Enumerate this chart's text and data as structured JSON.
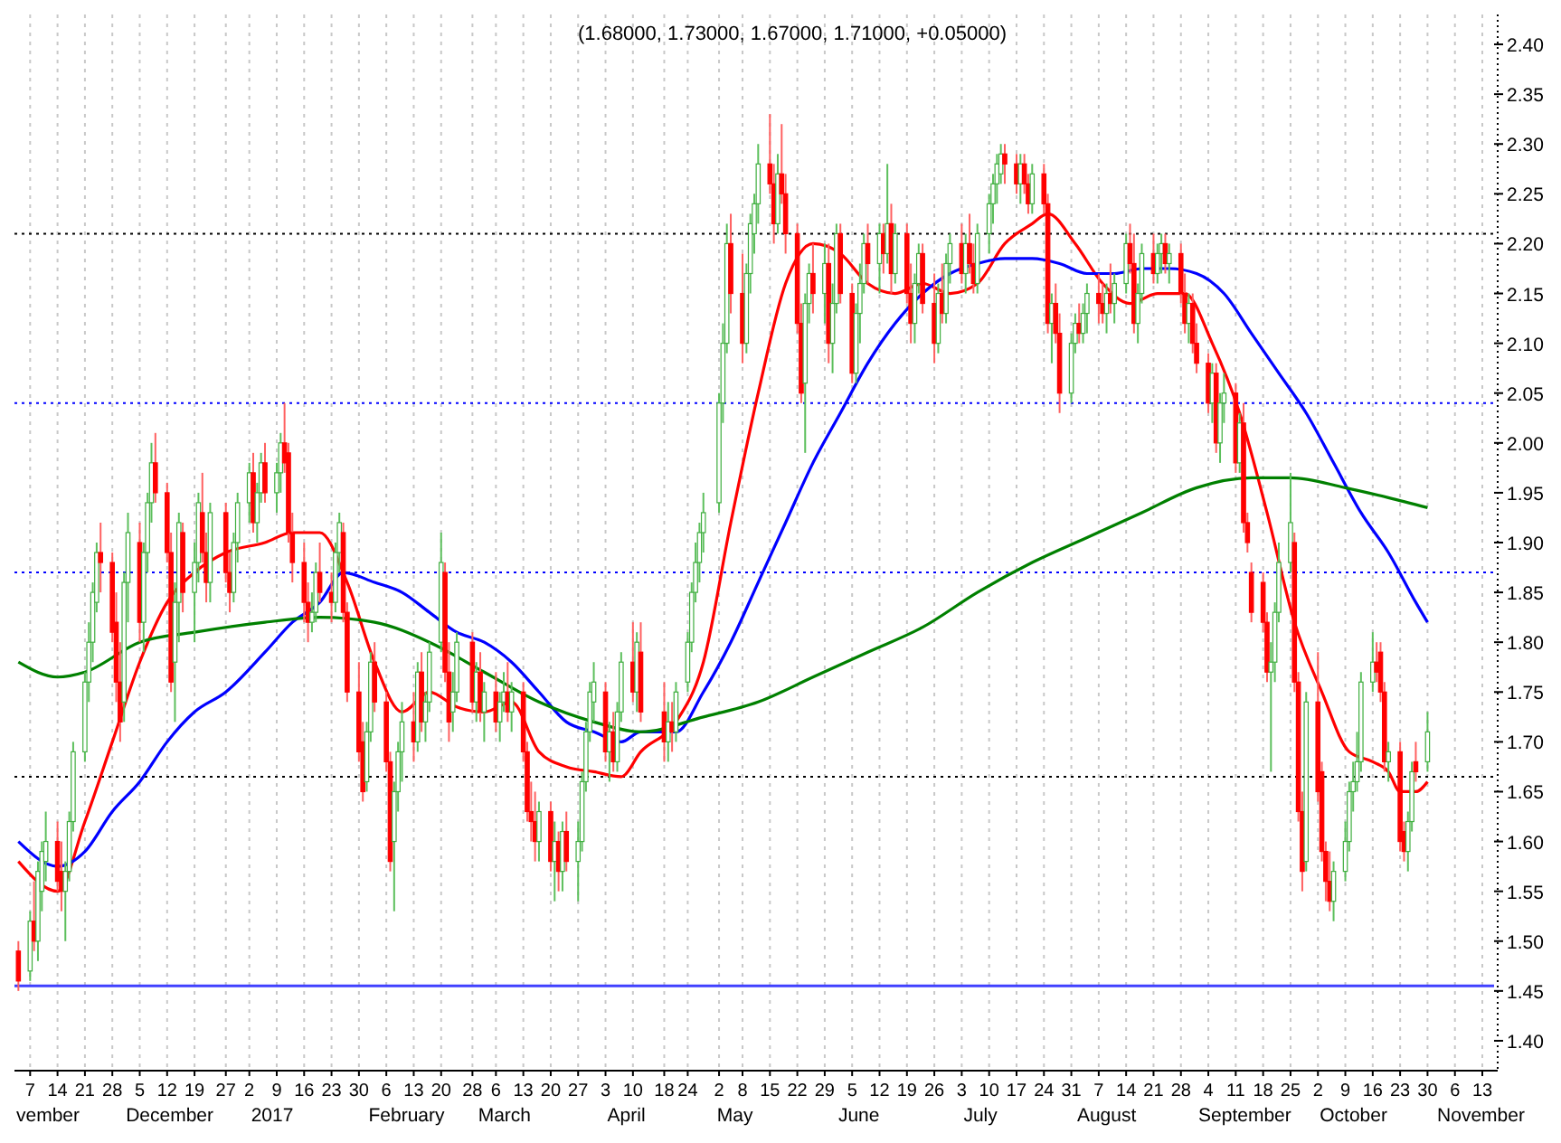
{
  "chart_data": {
    "type": "candlestick",
    "title": "(1.68000, 1.73000, 1.67000, 1.71000, +0.05000)",
    "x": [
      "2016-11-04",
      "2016-11-07",
      "2016-11-08",
      "2016-11-09",
      "2016-11-10",
      "2016-11-11",
      "2016-11-14",
      "2016-11-15",
      "2016-11-16",
      "2016-11-17",
      "2016-11-18",
      "2016-11-21",
      "2016-11-22",
      "2016-11-23",
      "2016-11-24",
      "2016-11-25",
      "2016-11-28",
      "2016-11-29",
      "2016-11-30",
      "2016-12-01",
      "2016-12-02",
      "2016-12-05",
      "2016-12-06",
      "2016-12-07",
      "2016-12-08",
      "2016-12-09",
      "2016-12-12",
      "2016-12-13",
      "2016-12-14",
      "2016-12-15",
      "2016-12-16",
      "2016-12-19",
      "2016-12-20",
      "2016-12-21",
      "2016-12-22",
      "2016-12-23",
      "2016-12-27",
      "2016-12-28",
      "2016-12-29",
      "2016-12-30",
      "2017-01-02",
      "2017-01-03",
      "2017-01-04",
      "2017-01-05",
      "2017-01-06",
      "2017-01-09",
      "2017-01-10",
      "2017-01-11",
      "2017-01-12",
      "2017-01-13",
      "2017-01-16",
      "2017-01-17",
      "2017-01-18",
      "2017-01-19",
      "2017-01-20",
      "2017-01-23",
      "2017-01-24",
      "2017-01-25",
      "2017-01-26",
      "2017-01-27",
      "2017-01-30",
      "2017-01-31",
      "2017-02-01",
      "2017-02-02",
      "2017-02-03",
      "2017-02-06",
      "2017-02-07",
      "2017-02-08",
      "2017-02-09",
      "2017-02-10",
      "2017-02-13",
      "2017-02-14",
      "2017-02-15",
      "2017-02-16",
      "2017-02-17",
      "2017-02-20",
      "2017-02-21",
      "2017-02-22",
      "2017-02-23",
      "2017-02-24",
      "2017-02-28",
      "2017-03-01",
      "2017-03-02",
      "2017-03-03",
      "2017-03-06",
      "2017-03-07",
      "2017-03-08",
      "2017-03-09",
      "2017-03-10",
      "2017-03-13",
      "2017-03-14",
      "2017-03-15",
      "2017-03-16",
      "2017-03-17",
      "2017-03-20",
      "2017-03-21",
      "2017-03-22",
      "2017-03-23",
      "2017-03-24",
      "2017-03-27",
      "2017-03-28",
      "2017-03-29",
      "2017-03-30",
      "2017-03-31",
      "2017-04-03",
      "2017-04-04",
      "2017-04-05",
      "2017-04-06",
      "2017-04-07",
      "2017-04-10",
      "2017-04-11",
      "2017-04-12",
      "2017-04-18",
      "2017-04-19",
      "2017-04-20",
      "2017-04-21",
      "2017-04-24",
      "2017-04-25",
      "2017-04-26",
      "2017-04-27",
      "2017-04-28",
      "2017-05-02",
      "2017-05-03",
      "2017-05-04",
      "2017-05-05",
      "2017-05-08",
      "2017-05-09",
      "2017-05-10",
      "2017-05-11",
      "2017-05-12",
      "2017-05-15",
      "2017-05-16",
      "2017-05-17",
      "2017-05-18",
      "2017-05-19",
      "2017-05-22",
      "2017-05-23",
      "2017-05-24",
      "2017-05-25",
      "2017-05-26",
      "2017-05-29",
      "2017-05-30",
      "2017-05-31",
      "2017-06-01",
      "2017-06-02",
      "2017-06-05",
      "2017-06-06",
      "2017-06-07",
      "2017-06-08",
      "2017-06-09",
      "2017-06-12",
      "2017-06-13",
      "2017-06-14",
      "2017-06-15",
      "2017-06-16",
      "2017-06-19",
      "2017-06-20",
      "2017-06-21",
      "2017-06-22",
      "2017-06-23",
      "2017-06-26",
      "2017-06-27",
      "2017-06-28",
      "2017-06-29",
      "2017-06-30",
      "2017-07-03",
      "2017-07-04",
      "2017-07-05",
      "2017-07-06",
      "2017-07-07",
      "2017-07-10",
      "2017-07-11",
      "2017-07-12",
      "2017-07-13",
      "2017-07-14",
      "2017-07-17",
      "2017-07-18",
      "2017-07-19",
      "2017-07-20",
      "2017-07-21",
      "2017-07-24",
      "2017-07-25",
      "2017-07-26",
      "2017-07-27",
      "2017-07-28",
      "2017-07-31",
      "2017-08-01",
      "2017-08-02",
      "2017-08-03",
      "2017-08-04",
      "2017-08-07",
      "2017-08-08",
      "2017-08-09",
      "2017-08-10",
      "2017-08-11",
      "2017-08-14",
      "2017-08-15",
      "2017-08-16",
      "2017-08-17",
      "2017-08-18",
      "2017-08-21",
      "2017-08-22",
      "2017-08-23",
      "2017-08-24",
      "2017-08-25",
      "2017-08-28",
      "2017-08-29",
      "2017-08-30",
      "2017-08-31",
      "2017-09-01",
      "2017-09-04",
      "2017-09-05",
      "2017-09-06",
      "2017-09-07",
      "2017-09-08",
      "2017-09-11",
      "2017-09-12",
      "2017-09-13",
      "2017-09-14",
      "2017-09-15",
      "2017-09-18",
      "2017-09-19",
      "2017-09-20",
      "2017-09-21",
      "2017-09-22",
      "2017-09-25",
      "2017-09-26",
      "2017-09-27",
      "2017-09-28",
      "2017-09-29",
      "2017-10-02",
      "2017-10-03",
      "2017-10-04",
      "2017-10-05",
      "2017-10-06",
      "2017-10-09",
      "2017-10-10",
      "2017-10-11",
      "2017-10-12",
      "2017-10-13",
      "2017-10-16",
      "2017-10-17",
      "2017-10-18",
      "2017-10-19",
      "2017-10-20",
      "2017-10-23",
      "2017-10-24",
      "2017-10-25",
      "2017-10-26",
      "2017-10-27",
      "2017-10-30"
    ],
    "ohlc": [
      [
        1.49,
        1.5,
        1.45,
        1.46
      ],
      [
        1.47,
        1.53,
        1.46,
        1.52
      ],
      [
        1.52,
        1.56,
        1.49,
        1.5
      ],
      [
        1.5,
        1.58,
        1.48,
        1.57
      ],
      [
        1.55,
        1.6,
        1.53,
        1.59
      ],
      [
        1.58,
        1.63,
        1.56,
        1.6
      ],
      [
        1.6,
        1.62,
        1.55,
        1.56
      ],
      [
        1.57,
        1.6,
        1.53,
        1.55
      ],
      [
        1.55,
        1.58,
        1.5,
        1.57
      ],
      [
        1.57,
        1.63,
        1.56,
        1.62
      ],
      [
        1.62,
        1.7,
        1.61,
        1.69
      ],
      [
        1.69,
        1.77,
        1.68,
        1.76
      ],
      [
        1.76,
        1.82,
        1.74,
        1.8
      ],
      [
        1.8,
        1.86,
        1.78,
        1.85
      ],
      [
        1.84,
        1.9,
        1.83,
        1.89
      ],
      [
        1.89,
        1.92,
        1.85,
        1.88
      ],
      [
        1.88,
        1.89,
        1.8,
        1.81
      ],
      [
        1.82,
        1.85,
        1.74,
        1.76
      ],
      [
        1.76,
        1.8,
        1.7,
        1.72
      ],
      [
        1.74,
        1.87,
        1.72,
        1.86
      ],
      [
        1.86,
        1.93,
        1.82,
        1.91
      ],
      [
        1.9,
        1.92,
        1.8,
        1.82
      ],
      [
        1.82,
        1.9,
        1.79,
        1.89
      ],
      [
        1.89,
        1.95,
        1.87,
        1.94
      ],
      [
        1.94,
        2.0,
        1.92,
        1.98
      ],
      [
        1.98,
        2.01,
        1.94,
        1.95
      ],
      [
        1.95,
        1.96,
        1.88,
        1.89
      ],
      [
        1.89,
        1.91,
        1.75,
        1.76
      ],
      [
        1.78,
        1.86,
        1.72,
        1.84
      ],
      [
        1.84,
        1.93,
        1.8,
        1.92
      ],
      [
        1.91,
        1.92,
        1.83,
        1.85
      ],
      [
        1.85,
        1.9,
        1.8,
        1.88
      ],
      [
        1.88,
        1.95,
        1.86,
        1.94
      ],
      [
        1.93,
        1.97,
        1.88,
        1.89
      ],
      [
        1.89,
        1.91,
        1.84,
        1.86
      ],
      [
        1.86,
        1.94,
        1.84,
        1.93
      ],
      [
        1.93,
        1.94,
        1.86,
        1.87
      ],
      [
        1.87,
        1.89,
        1.83,
        1.85
      ],
      [
        1.85,
        1.91,
        1.84,
        1.9
      ],
      [
        1.9,
        1.95,
        1.88,
        1.94
      ],
      [
        1.94,
        1.98,
        1.92,
        1.97
      ],
      [
        1.97,
        1.99,
        1.91,
        1.92
      ],
      [
        1.92,
        1.96,
        1.9,
        1.95
      ],
      [
        1.95,
        1.99,
        1.94,
        1.98
      ],
      [
        1.98,
        2.0,
        1.94,
        1.95
      ],
      [
        1.95,
        1.98,
        1.93,
        1.97
      ],
      [
        1.97,
        2.01,
        1.95,
        2.0
      ],
      [
        2.0,
        2.04,
        1.97,
        1.98
      ],
      [
        1.99,
        2.0,
        1.9,
        1.91
      ],
      [
        1.91,
        1.93,
        1.86,
        1.88
      ],
      [
        1.88,
        1.9,
        1.82,
        1.84
      ],
      [
        1.84,
        1.86,
        1.8,
        1.82
      ],
      [
        1.82,
        1.85,
        1.81,
        1.83
      ],
      [
        1.83,
        1.88,
        1.82,
        1.87
      ],
      [
        1.87,
        1.9,
        1.84,
        1.85
      ],
      [
        1.85,
        1.87,
        1.82,
        1.84
      ],
      [
        1.84,
        1.9,
        1.83,
        1.89
      ],
      [
        1.89,
        1.93,
        1.87,
        1.92
      ],
      [
        1.91,
        1.92,
        1.82,
        1.83
      ],
      [
        1.83,
        1.84,
        1.74,
        1.75
      ],
      [
        1.75,
        1.78,
        1.68,
        1.69
      ],
      [
        1.7,
        1.72,
        1.64,
        1.65
      ],
      [
        1.66,
        1.72,
        1.65,
        1.71
      ],
      [
        1.71,
        1.79,
        1.7,
        1.78
      ],
      [
        1.78,
        1.8,
        1.73,
        1.74
      ],
      [
        1.74,
        1.75,
        1.67,
        1.68
      ],
      [
        1.68,
        1.69,
        1.57,
        1.58
      ],
      [
        1.6,
        1.66,
        1.53,
        1.65
      ],
      [
        1.65,
        1.7,
        1.63,
        1.69
      ],
      [
        1.69,
        1.74,
        1.66,
        1.72
      ],
      [
        1.72,
        1.75,
        1.68,
        1.7
      ],
      [
        1.7,
        1.78,
        1.69,
        1.77
      ],
      [
        1.77,
        1.79,
        1.71,
        1.72
      ],
      [
        1.72,
        1.75,
        1.7,
        1.74
      ],
      [
        1.74,
        1.8,
        1.73,
        1.79
      ],
      [
        1.8,
        1.91,
        1.79,
        1.88
      ],
      [
        1.87,
        1.88,
        1.76,
        1.77
      ],
      [
        1.77,
        1.8,
        1.7,
        1.72
      ],
      [
        1.73,
        1.77,
        1.71,
        1.75
      ],
      [
        1.75,
        1.81,
        1.74,
        1.8
      ],
      [
        1.8,
        1.81,
        1.73,
        1.74
      ],
      [
        1.74,
        1.78,
        1.72,
        1.77
      ],
      [
        1.77,
        1.79,
        1.72,
        1.73
      ],
      [
        1.73,
        1.76,
        1.7,
        1.75
      ],
      [
        1.75,
        1.77,
        1.71,
        1.72
      ],
      [
        1.72,
        1.75,
        1.7,
        1.74
      ],
      [
        1.74,
        1.77,
        1.73,
        1.75
      ],
      [
        1.75,
        1.78,
        1.72,
        1.73
      ],
      [
        1.73,
        1.76,
        1.71,
        1.75
      ],
      [
        1.75,
        1.76,
        1.68,
        1.69
      ],
      [
        1.69,
        1.7,
        1.62,
        1.63
      ],
      [
        1.63,
        1.66,
        1.6,
        1.62
      ],
      [
        1.62,
        1.65,
        1.58,
        1.6
      ],
      [
        1.6,
        1.64,
        1.58,
        1.63
      ],
      [
        1.63,
        1.64,
        1.57,
        1.58
      ],
      [
        1.58,
        1.62,
        1.54,
        1.6
      ],
      [
        1.6,
        1.61,
        1.55,
        1.57
      ],
      [
        1.57,
        1.62,
        1.55,
        1.61
      ],
      [
        1.61,
        1.63,
        1.57,
        1.58
      ],
      [
        1.58,
        1.62,
        1.54,
        1.6
      ],
      [
        1.6,
        1.67,
        1.59,
        1.66
      ],
      [
        1.66,
        1.72,
        1.65,
        1.71
      ],
      [
        1.71,
        1.76,
        1.7,
        1.75
      ],
      [
        1.74,
        1.78,
        1.72,
        1.76
      ],
      [
        1.75,
        1.76,
        1.68,
        1.69
      ],
      [
        1.69,
        1.72,
        1.66,
        1.71
      ],
      [
        1.71,
        1.73,
        1.67,
        1.68
      ],
      [
        1.68,
        1.74,
        1.67,
        1.73
      ],
      [
        1.73,
        1.79,
        1.72,
        1.78
      ],
      [
        1.78,
        1.82,
        1.74,
        1.75
      ],
      [
        1.75,
        1.81,
        1.73,
        1.8
      ],
      [
        1.79,
        1.82,
        1.72,
        1.73
      ],
      [
        1.73,
        1.76,
        1.68,
        1.7
      ],
      [
        1.7,
        1.74,
        1.68,
        1.72
      ],
      [
        1.72,
        1.74,
        1.69,
        1.71
      ],
      [
        1.71,
        1.76,
        1.7,
        1.75
      ],
      [
        1.76,
        1.81,
        1.75,
        1.8
      ],
      [
        1.8,
        1.86,
        1.79,
        1.85
      ],
      [
        1.85,
        1.9,
        1.84,
        1.88
      ],
      [
        1.88,
        1.92,
        1.86,
        1.91
      ],
      [
        1.91,
        1.95,
        1.89,
        1.93
      ],
      [
        1.94,
        2.05,
        1.93,
        2.04
      ],
      [
        2.04,
        2.12,
        2.02,
        2.1
      ],
      [
        2.1,
        2.22,
        2.09,
        2.2
      ],
      [
        2.2,
        2.23,
        2.13,
        2.15
      ],
      [
        2.15,
        2.19,
        2.08,
        2.1
      ],
      [
        2.1,
        2.18,
        2.09,
        2.17
      ],
      [
        2.17,
        2.23,
        2.15,
        2.22
      ],
      [
        2.21,
        2.25,
        2.19,
        2.24
      ],
      [
        2.24,
        2.3,
        2.22,
        2.28
      ],
      [
        2.28,
        2.33,
        2.25,
        2.26
      ],
      [
        2.26,
        2.28,
        2.2,
        2.22
      ],
      [
        2.22,
        2.29,
        2.21,
        2.27
      ],
      [
        2.27,
        2.32,
        2.24,
        2.25
      ],
      [
        2.25,
        2.27,
        2.19,
        2.21
      ],
      [
        2.21,
        2.22,
        2.11,
        2.12
      ],
      [
        2.12,
        2.14,
        2.04,
        2.05
      ],
      [
        2.06,
        2.15,
        1.99,
        2.14
      ],
      [
        2.14,
        2.18,
        2.12,
        2.17
      ],
      [
        2.17,
        2.2,
        2.13,
        2.15
      ],
      [
        2.15,
        2.2,
        2.12,
        2.18
      ],
      [
        2.18,
        2.2,
        2.08,
        2.1
      ],
      [
        2.1,
        2.16,
        2.07,
        2.14
      ],
      [
        2.14,
        2.22,
        2.13,
        2.21
      ],
      [
        2.21,
        2.22,
        2.14,
        2.15
      ],
      [
        2.15,
        2.16,
        2.06,
        2.07
      ],
      [
        2.07,
        2.14,
        2.06,
        2.13
      ],
      [
        2.13,
        2.18,
        2.1,
        2.16
      ],
      [
        2.16,
        2.21,
        2.15,
        2.2
      ],
      [
        2.2,
        2.22,
        2.16,
        2.18
      ],
      [
        2.18,
        2.22,
        2.15,
        2.21
      ],
      [
        2.21,
        2.22,
        2.17,
        2.19
      ],
      [
        2.19,
        2.28,
        2.18,
        2.22
      ],
      [
        2.22,
        2.24,
        2.15,
        2.17
      ],
      [
        2.17,
        2.22,
        2.16,
        2.21
      ],
      [
        2.21,
        2.22,
        2.14,
        2.15
      ],
      [
        2.15,
        2.18,
        2.1,
        2.12
      ],
      [
        2.12,
        2.17,
        2.1,
        2.16
      ],
      [
        2.16,
        2.2,
        2.15,
        2.19
      ],
      [
        2.19,
        2.2,
        2.13,
        2.14
      ],
      [
        2.14,
        2.17,
        2.08,
        2.1
      ],
      [
        2.1,
        2.16,
        2.09,
        2.15
      ],
      [
        2.15,
        2.18,
        2.12,
        2.13
      ],
      [
        2.13,
        2.19,
        2.12,
        2.18
      ],
      [
        2.18,
        2.21,
        2.16,
        2.2
      ],
      [
        2.2,
        2.22,
        2.16,
        2.17
      ],
      [
        2.17,
        2.21,
        2.15,
        2.2
      ],
      [
        2.2,
        2.23,
        2.17,
        2.18
      ],
      [
        2.18,
        2.2,
        2.15,
        2.16
      ],
      [
        2.16,
        2.22,
        2.15,
        2.21
      ],
      [
        2.21,
        2.25,
        2.19,
        2.24
      ],
      [
        2.24,
        2.27,
        2.22,
        2.26
      ],
      [
        2.26,
        2.29,
        2.24,
        2.28
      ],
      [
        2.27,
        2.3,
        2.26,
        2.29
      ],
      [
        2.29,
        2.3,
        2.26,
        2.28
      ],
      [
        2.28,
        2.29,
        2.25,
        2.26
      ],
      [
        2.26,
        2.29,
        2.24,
        2.28
      ],
      [
        2.28,
        2.29,
        2.25,
        2.26
      ],
      [
        2.26,
        2.27,
        2.23,
        2.24
      ],
      [
        2.24,
        2.28,
        2.23,
        2.27
      ],
      [
        2.27,
        2.28,
        2.23,
        2.24
      ],
      [
        2.24,
        2.25,
        2.11,
        2.12
      ],
      [
        2.12,
        2.15,
        2.08,
        2.14
      ],
      [
        2.14,
        2.16,
        2.1,
        2.11
      ],
      [
        2.11,
        2.13,
        2.03,
        2.05
      ],
      [
        2.05,
        2.11,
        2.04,
        2.1
      ],
      [
        2.1,
        2.13,
        2.09,
        2.12
      ],
      [
        2.12,
        2.14,
        2.1,
        2.11
      ],
      [
        2.11,
        2.14,
        2.1,
        2.13
      ],
      [
        2.13,
        2.16,
        2.11,
        2.15
      ],
      [
        2.15,
        2.17,
        2.12,
        2.14
      ],
      [
        2.14,
        2.16,
        2.12,
        2.13
      ],
      [
        2.13,
        2.16,
        2.11,
        2.15
      ],
      [
        2.15,
        2.18,
        2.13,
        2.14
      ],
      [
        2.14,
        2.17,
        2.12,
        2.16
      ],
      [
        2.16,
        2.21,
        2.15,
        2.2
      ],
      [
        2.2,
        2.22,
        2.17,
        2.18
      ],
      [
        2.18,
        2.21,
        2.11,
        2.12
      ],
      [
        2.12,
        2.16,
        2.1,
        2.15
      ],
      [
        2.15,
        2.2,
        2.14,
        2.19
      ],
      [
        2.19,
        2.21,
        2.16,
        2.17
      ],
      [
        2.17,
        2.2,
        2.16,
        2.19
      ],
      [
        2.19,
        2.21,
        2.17,
        2.2
      ],
      [
        2.2,
        2.21,
        2.17,
        2.18
      ],
      [
        2.18,
        2.2,
        2.16,
        2.19
      ],
      [
        2.19,
        2.2,
        2.14,
        2.15
      ],
      [
        2.15,
        2.17,
        2.11,
        2.12
      ],
      [
        2.12,
        2.15,
        2.1,
        2.14
      ],
      [
        2.14,
        2.15,
        2.09,
        2.1
      ],
      [
        2.1,
        2.12,
        2.07,
        2.08
      ],
      [
        2.08,
        2.09,
        2.03,
        2.04
      ],
      [
        2.04,
        2.08,
        2.02,
        2.07
      ],
      [
        2.07,
        2.08,
        1.99,
        2.0
      ],
      [
        2.0,
        2.05,
        1.98,
        2.04
      ],
      [
        2.04,
        2.07,
        2.02,
        2.05
      ],
      [
        2.05,
        2.06,
        1.97,
        1.98
      ],
      [
        1.98,
        2.03,
        1.97,
        2.02
      ],
      [
        2.02,
        2.04,
        1.91,
        1.92
      ],
      [
        1.92,
        1.93,
        1.89,
        1.9
      ],
      [
        1.87,
        1.88,
        1.82,
        1.83
      ],
      [
        1.86,
        1.87,
        1.81,
        1.82
      ],
      [
        1.82,
        1.83,
        1.76,
        1.77
      ],
      [
        1.77,
        1.8,
        1.67,
        1.78
      ],
      [
        1.78,
        1.84,
        1.76,
        1.83
      ],
      [
        1.83,
        1.9,
        1.82,
        1.88
      ],
      [
        1.88,
        1.97,
        1.87,
        1.92
      ],
      [
        1.9,
        1.91,
        1.75,
        1.76
      ],
      [
        1.76,
        1.77,
        1.62,
        1.63
      ],
      [
        1.63,
        1.65,
        1.55,
        1.57
      ],
      [
        1.58,
        1.75,
        1.57,
        1.74
      ],
      [
        1.74,
        1.79,
        1.64,
        1.65
      ],
      [
        1.67,
        1.68,
        1.58,
        1.59
      ],
      [
        1.59,
        1.6,
        1.54,
        1.56
      ],
      [
        1.56,
        1.59,
        1.53,
        1.54
      ],
      [
        1.54,
        1.58,
        1.52,
        1.57
      ],
      [
        1.57,
        1.62,
        1.56,
        1.6
      ],
      [
        1.6,
        1.66,
        1.59,
        1.65
      ],
      [
        1.65,
        1.68,
        1.63,
        1.66
      ],
      [
        1.66,
        1.71,
        1.65,
        1.68
      ],
      [
        1.68,
        1.77,
        1.67,
        1.76
      ],
      [
        1.76,
        1.81,
        1.75,
        1.78
      ],
      [
        1.78,
        1.8,
        1.76,
        1.77
      ],
      [
        1.79,
        1.8,
        1.74,
        1.75
      ],
      [
        1.75,
        1.76,
        1.67,
        1.68
      ],
      [
        1.68,
        1.7,
        1.66,
        1.69
      ],
      [
        1.69,
        1.7,
        1.59,
        1.6
      ],
      [
        1.61,
        1.62,
        1.58,
        1.59
      ],
      [
        1.59,
        1.63,
        1.57,
        1.62
      ],
      [
        1.62,
        1.68,
        1.61,
        1.67
      ],
      [
        1.68,
        1.7,
        1.66,
        1.67
      ],
      [
        1.68,
        1.73,
        1.67,
        1.71
      ]
    ],
    "series": [
      {
        "type": "line",
        "color": "#ff0000",
        "x": [
          "2016-11-04",
          "2016-11-14",
          "2016-11-21",
          "2016-11-28",
          "2016-12-05",
          "2016-12-12",
          "2016-12-19",
          "2016-12-27",
          "2017-01-06",
          "2017-01-13",
          "2017-01-20",
          "2017-01-27",
          "2017-02-03",
          "2017-02-10",
          "2017-02-17",
          "2017-02-24",
          "2017-03-03",
          "2017-03-10",
          "2017-03-17",
          "2017-03-24",
          "2017-03-31",
          "2017-04-07",
          "2017-04-12",
          "2017-04-21",
          "2017-04-28",
          "2017-05-05",
          "2017-05-12",
          "2017-05-19",
          "2017-05-26",
          "2017-06-02",
          "2017-06-09",
          "2017-06-16",
          "2017-06-23",
          "2017-06-30",
          "2017-07-07",
          "2017-07-14",
          "2017-07-21",
          "2017-07-25",
          "2017-08-01",
          "2017-08-08",
          "2017-08-15",
          "2017-08-22",
          "2017-08-29",
          "2017-09-05",
          "2017-09-12",
          "2017-09-19",
          "2017-09-26",
          "2017-10-03",
          "2017-10-10",
          "2017-10-16",
          "2017-10-20",
          "2017-10-23",
          "2017-10-27",
          "2017-10-30"
        ],
        "values": [
          1.58,
          1.55,
          1.62,
          1.7,
          1.78,
          1.84,
          1.87,
          1.89,
          1.9,
          1.91,
          1.91,
          1.86,
          1.78,
          1.73,
          1.75,
          1.735,
          1.73,
          1.74,
          1.69,
          1.675,
          1.67,
          1.665,
          1.69,
          1.72,
          1.78,
          1.92,
          2.05,
          2.16,
          2.2,
          2.19,
          2.16,
          2.15,
          2.16,
          2.15,
          2.16,
          2.2,
          2.22,
          2.23,
          2.2,
          2.16,
          2.14,
          2.15,
          2.15,
          2.1,
          2.03,
          1.93,
          1.82,
          1.75,
          1.69,
          1.68,
          1.67,
          1.65,
          1.65,
          1.66
        ]
      },
      {
        "type": "line",
        "color": "#0000ff",
        "x": [
          "2016-11-04",
          "2016-11-14",
          "2016-11-21",
          "2016-11-28",
          "2016-12-05",
          "2016-12-12",
          "2016-12-19",
          "2016-12-27",
          "2017-01-06",
          "2017-01-13",
          "2017-01-20",
          "2017-01-26",
          "2017-02-03",
          "2017-02-10",
          "2017-02-17",
          "2017-02-24",
          "2017-03-03",
          "2017-03-10",
          "2017-03-17",
          "2017-03-24",
          "2017-03-31",
          "2017-04-07",
          "2017-04-12",
          "2017-04-21",
          "2017-04-28",
          "2017-05-05",
          "2017-05-12",
          "2017-05-19",
          "2017-05-26",
          "2017-06-02",
          "2017-06-09",
          "2017-06-16",
          "2017-06-23",
          "2017-06-30",
          "2017-07-07",
          "2017-07-14",
          "2017-07-21",
          "2017-07-28",
          "2017-08-04",
          "2017-08-11",
          "2017-08-18",
          "2017-08-25",
          "2017-09-01",
          "2017-09-08",
          "2017-09-15",
          "2017-09-22",
          "2017-09-29",
          "2017-10-06",
          "2017-10-13",
          "2017-10-20",
          "2017-10-27",
          "2017-10-30"
        ],
        "values": [
          1.6,
          1.575,
          1.59,
          1.63,
          1.66,
          1.7,
          1.73,
          1.75,
          1.79,
          1.82,
          1.84,
          1.87,
          1.86,
          1.85,
          1.83,
          1.81,
          1.8,
          1.78,
          1.75,
          1.72,
          1.71,
          1.7,
          1.71,
          1.71,
          1.75,
          1.8,
          1.86,
          1.92,
          1.98,
          2.03,
          2.08,
          2.12,
          2.15,
          2.17,
          2.18,
          2.185,
          2.185,
          2.18,
          2.17,
          2.17,
          2.175,
          2.175,
          2.17,
          2.15,
          2.11,
          2.07,
          2.03,
          1.98,
          1.93,
          1.89,
          1.84,
          1.82
        ]
      },
      {
        "type": "line",
        "color": "#008000",
        "x": [
          "2016-11-04",
          "2016-11-14",
          "2016-11-21",
          "2016-12-05",
          "2016-12-19",
          "2017-01-06",
          "2017-01-20",
          "2017-02-03",
          "2017-02-17",
          "2017-03-03",
          "2017-03-17",
          "2017-03-31",
          "2017-04-12",
          "2017-04-28",
          "2017-05-12",
          "2017-05-26",
          "2017-06-09",
          "2017-06-23",
          "2017-07-07",
          "2017-07-21",
          "2017-08-04",
          "2017-08-18",
          "2017-09-01",
          "2017-09-15",
          "2017-09-25",
          "2017-10-09",
          "2017-10-20",
          "2017-10-30"
        ],
        "values": [
          1.78,
          1.765,
          1.77,
          1.8,
          1.81,
          1.82,
          1.825,
          1.82,
          1.8,
          1.77,
          1.74,
          1.72,
          1.71,
          1.725,
          1.74,
          1.765,
          1.79,
          1.815,
          1.85,
          1.88,
          1.905,
          1.93,
          1.955,
          1.965,
          1.965,
          1.955,
          1.945,
          1.935
        ]
      }
    ],
    "xlim": [
      "2016-11-03",
      "2017-11-16"
    ],
    "xticks": [
      {
        "value": "2016-11-07",
        "label": "7"
      },
      {
        "value": "2016-11-14",
        "label": "14"
      },
      {
        "value": "2016-11-21",
        "label": "21"
      },
      {
        "value": "2016-11-28",
        "label": "28"
      },
      {
        "value": "2016-12-05",
        "label": "5"
      },
      {
        "value": "2016-12-12",
        "label": "12"
      },
      {
        "value": "2016-12-19",
        "label": "19"
      },
      {
        "value": "2016-12-27",
        "label": "27"
      },
      {
        "value": "2017-01-02",
        "label": "2"
      },
      {
        "value": "2017-01-09",
        "label": "9"
      },
      {
        "value": "2017-01-16",
        "label": "16"
      },
      {
        "value": "2017-01-23",
        "label": "23"
      },
      {
        "value": "2017-01-30",
        "label": "30"
      },
      {
        "value": "2017-02-06",
        "label": "6"
      },
      {
        "value": "2017-02-13",
        "label": "13"
      },
      {
        "value": "2017-02-20",
        "label": "20"
      },
      {
        "value": "2017-02-28",
        "label": "28"
      },
      {
        "value": "2017-03-06",
        "label": "6"
      },
      {
        "value": "2017-03-13",
        "label": "13"
      },
      {
        "value": "2017-03-20",
        "label": "20"
      },
      {
        "value": "2017-03-27",
        "label": "27"
      },
      {
        "value": "2017-04-03",
        "label": "3"
      },
      {
        "value": "2017-04-10",
        "label": "10"
      },
      {
        "value": "2017-04-18",
        "label": "18"
      },
      {
        "value": "2017-04-24",
        "label": "24"
      },
      {
        "value": "2017-05-02",
        "label": "2"
      },
      {
        "value": "2017-05-08",
        "label": "8"
      },
      {
        "value": "2017-05-15",
        "label": "15"
      },
      {
        "value": "2017-05-22",
        "label": "22"
      },
      {
        "value": "2017-05-29",
        "label": "29"
      },
      {
        "value": "2017-06-05",
        "label": "5"
      },
      {
        "value": "2017-06-12",
        "label": "12"
      },
      {
        "value": "2017-06-19",
        "label": "19"
      },
      {
        "value": "2017-06-26",
        "label": "26"
      },
      {
        "value": "2017-07-03",
        "label": "3"
      },
      {
        "value": "2017-07-10",
        "label": "10"
      },
      {
        "value": "2017-07-17",
        "label": "17"
      },
      {
        "value": "2017-07-24",
        "label": "24"
      },
      {
        "value": "2017-07-31",
        "label": "31"
      },
      {
        "value": "2017-08-07",
        "label": "7"
      },
      {
        "value": "2017-08-14",
        "label": "14"
      },
      {
        "value": "2017-08-21",
        "label": "21"
      },
      {
        "value": "2017-08-28",
        "label": "28"
      },
      {
        "value": "2017-09-04",
        "label": "4"
      },
      {
        "value": "2017-09-11",
        "label": "11"
      },
      {
        "value": "2017-09-18",
        "label": "18"
      },
      {
        "value": "2017-09-25",
        "label": "25"
      },
      {
        "value": "2017-10-02",
        "label": "2"
      },
      {
        "value": "2017-10-09",
        "label": "9"
      },
      {
        "value": "2017-10-16",
        "label": "16"
      },
      {
        "value": "2017-10-23",
        "label": "23"
      },
      {
        "value": "2017-10-30",
        "label": "30"
      },
      {
        "value": "2017-11-06",
        "label": "6"
      },
      {
        "value": "2017-11-13",
        "label": "13"
      }
    ],
    "annotations": [
      "vember",
      "December",
      "2017",
      "February",
      "March",
      "April",
      "May",
      "June",
      "July",
      "August",
      "September",
      "October",
      "November"
    ],
    "ylim": [
      1.37,
      2.43
    ],
    "yticks": [
      {
        "value": 1.4,
        "label": "1.40"
      },
      {
        "value": 1.45,
        "label": "1.45"
      },
      {
        "value": 1.5,
        "label": "1.50"
      },
      {
        "value": 1.55,
        "label": "1.55"
      },
      {
        "value": 1.6,
        "label": "1.60"
      },
      {
        "value": 1.65,
        "label": "1.65"
      },
      {
        "value": 1.7,
        "label": "1.70"
      },
      {
        "value": 1.75,
        "label": "1.75"
      },
      {
        "value": 1.8,
        "label": "1.80"
      },
      {
        "value": 1.85,
        "label": "1.85"
      },
      {
        "value": 1.9,
        "label": "1.90"
      },
      {
        "value": 1.95,
        "label": "1.95"
      },
      {
        "value": 2.0,
        "label": "2.00"
      },
      {
        "value": 2.05,
        "label": "2.05"
      },
      {
        "value": 2.1,
        "label": "2.10"
      },
      {
        "value": 2.15,
        "label": "2.15"
      },
      {
        "value": 2.2,
        "label": "2.20"
      },
      {
        "value": 2.25,
        "label": "2.25"
      },
      {
        "value": 2.3,
        "label": "2.30"
      },
      {
        "value": 2.35,
        "label": "2.35"
      },
      {
        "value": 2.4,
        "label": "2.40"
      }
    ],
    "ref_lines": [
      {
        "axis": "y",
        "value": 2.21,
        "color": "#000000",
        "line_style": "dotted"
      },
      {
        "axis": "y",
        "value": 2.04,
        "color": "#0000ff",
        "line_style": "dotted"
      },
      {
        "axis": "y",
        "value": 1.87,
        "color": "#0000ff",
        "line_style": "dotted"
      },
      {
        "axis": "y",
        "value": 1.665,
        "color": "#000000",
        "line_style": "dotted"
      },
      {
        "axis": "y",
        "value": 1.455,
        "color": "#4040ff",
        "line_style": "solid"
      }
    ],
    "grid": "x"
  }
}
